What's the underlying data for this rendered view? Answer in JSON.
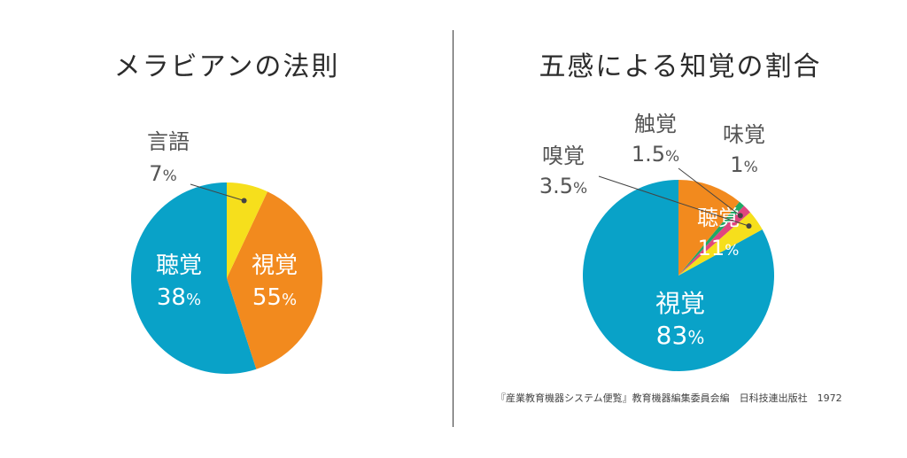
{
  "left": {
    "title": "メラビアンの法則",
    "chart_data": {
      "type": "pie",
      "title": "メラビアンの法則",
      "slices": [
        {
          "label": "視覚",
          "value": 55,
          "value_text": "55",
          "color": "#09a2c8"
        },
        {
          "label": "聴覚",
          "value": 38,
          "value_text": "38",
          "color": "#f28a1e"
        },
        {
          "label": "言語",
          "value": 7,
          "value_text": "7",
          "color": "#f6df1c"
        }
      ],
      "unit": "%"
    }
  },
  "right": {
    "title": "五感による知覚の割合",
    "chart_data": {
      "type": "pie",
      "title": "五感による知覚の割合",
      "slices": [
        {
          "label": "視覚",
          "value": 83,
          "value_text": "83",
          "color": "#09a2c8"
        },
        {
          "label": "嗅覚",
          "value": 3.5,
          "value_text": "3.5",
          "color": "#f6df1c"
        },
        {
          "label": "触覚",
          "value": 1.5,
          "value_text": "1.5",
          "color": "#e0457f"
        },
        {
          "label": "味覚",
          "value": 1,
          "value_text": "1",
          "color": "#1fa866"
        },
        {
          "label": "聴覚",
          "value": 11,
          "value_text": "11",
          "color": "#f28a1e"
        }
      ],
      "unit": "%"
    },
    "source": "『産業教育機器システム便覧』教育機器編集委員会編　日科技連出版社　1972"
  }
}
